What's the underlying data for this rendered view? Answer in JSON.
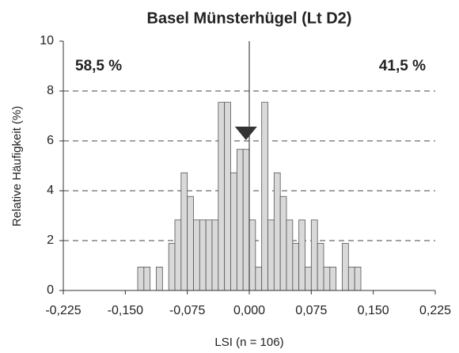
{
  "chart_data": {
    "type": "histogram",
    "title": "Basel Münsterhügel (Lt D2)",
    "x_label": "LSI (n = 106)",
    "y_label": "Relative Häufigkeit (%)",
    "annotations": [
      "58,5 %",
      "41,5 %"
    ],
    "bins": [
      -0.135,
      -0.1275,
      -0.12,
      -0.1125,
      -0.105,
      -0.0975,
      -0.09,
      -0.0825,
      -0.075,
      -0.0675,
      -0.06,
      -0.0525,
      -0.045,
      -0.0375,
      -0.03,
      -0.0225,
      -0.015,
      -0.0075,
      0,
      0.0075,
      0.015,
      0.0225,
      0.03,
      0.0375,
      0.045,
      0.0525,
      0.06,
      0.0675,
      0.075,
      0.0825,
      0.09,
      0.0975,
      0.105,
      0.1125,
      0.12,
      0.1275,
      0.135
    ],
    "values": [
      0.94,
      0.94,
      0,
      0.94,
      0,
      1.89,
      2.83,
      4.72,
      3.77,
      2.83,
      2.83,
      2.83,
      2.83,
      7.55,
      7.55,
      4.72,
      5.66,
      5.66,
      2.83,
      0.94,
      7.55,
      2.83,
      4.72,
      3.77,
      2.83,
      1.89,
      2.83,
      0.94,
      2.83,
      1.89,
      0.94,
      0.94,
      0,
      1.89,
      0.94,
      0.94
    ],
    "color": "#d9d9d9",
    "reference_line": 0,
    "marker_x": -0.004,
    "xlim": [
      -0.225,
      0.225
    ],
    "xticks": [
      {
        "value": -0.225,
        "label": "-0,225"
      },
      {
        "value": -0.15,
        "label": "-0,150"
      },
      {
        "value": -0.075,
        "label": "-0,075"
      },
      {
        "value": 0,
        "label": "0,000"
      },
      {
        "value": 0.075,
        "label": "0,075"
      },
      {
        "value": 0.15,
        "label": "0,150"
      },
      {
        "value": 0.225,
        "label": "0,225"
      }
    ],
    "ylim": [
      0,
      10
    ],
    "yticks": [
      0,
      2,
      4,
      6,
      8,
      10
    ],
    "grid": true
  }
}
